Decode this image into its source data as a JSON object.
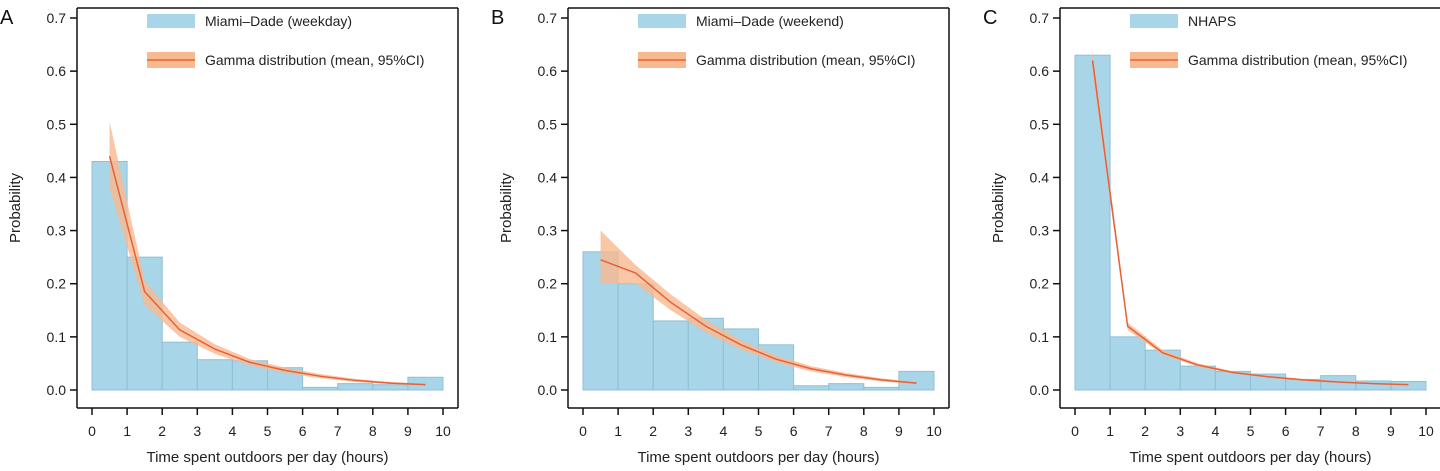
{
  "colors": {
    "bar": "#a8d5e8",
    "bar_edge": "#8fc0d6",
    "ci": "#f7b98e",
    "mean": "#e8603a",
    "axis": "#111111"
  },
  "chart_data": [
    {
      "type": "bar",
      "panel_label": "A",
      "xlabel": "Time spent outdoors per day (hours)",
      "ylabel": "Probability",
      "xlim": [
        0,
        10
      ],
      "ylim": [
        0,
        0.7
      ],
      "xticks": [
        0,
        1,
        2,
        3,
        4,
        5,
        6,
        7,
        8,
        9,
        10
      ],
      "yticks": [
        "0.0",
        "0.1",
        "0.2",
        "0.3",
        "0.4",
        "0.5",
        "0.6",
        "0.7"
      ],
      "grid": false,
      "legend_position": "top",
      "bins": [
        0,
        1,
        2,
        3,
        4,
        5,
        6,
        7,
        8,
        9,
        10
      ],
      "series": [
        {
          "name": "Miami–Dade (weekday)",
          "type": "histogram",
          "values": [
            0.43,
            0.25,
            0.09,
            0.057,
            0.055,
            0.042,
            0.005,
            0.012,
            0.01,
            0.024
          ]
        },
        {
          "name": "Gamma distribution (mean, 95%CI)",
          "type": "line",
          "x": [
            0.5,
            1.5,
            2.5,
            3.5,
            4.5,
            5.5,
            6.5,
            7.5,
            8.5,
            9.5
          ],
          "mean": [
            0.44,
            0.185,
            0.113,
            0.077,
            0.052,
            0.037,
            0.026,
            0.018,
            0.013,
            0.01
          ],
          "lower": [
            0.38,
            0.16,
            0.1,
            0.068,
            0.046,
            0.032,
            0.022,
            0.015,
            0.011,
            0.008
          ],
          "upper": [
            0.505,
            0.205,
            0.127,
            0.086,
            0.058,
            0.042,
            0.03,
            0.021,
            0.015,
            0.012
          ]
        }
      ]
    },
    {
      "type": "bar",
      "panel_label": "B",
      "xlabel": "Time spent outdoors per day (hours)",
      "ylabel": "Probability",
      "xlim": [
        0,
        10
      ],
      "ylim": [
        0,
        0.7
      ],
      "xticks": [
        0,
        1,
        2,
        3,
        4,
        5,
        6,
        7,
        8,
        9,
        10
      ],
      "yticks": [
        "0.0",
        "0.1",
        "0.2",
        "0.3",
        "0.4",
        "0.5",
        "0.6",
        "0.7"
      ],
      "grid": false,
      "legend_position": "top",
      "bins": [
        0,
        1,
        2,
        3,
        4,
        5,
        6,
        7,
        8,
        9,
        10
      ],
      "series": [
        {
          "name": "Miami–Dade (weekend)",
          "type": "histogram",
          "values": [
            0.26,
            0.2,
            0.13,
            0.135,
            0.115,
            0.085,
            0.008,
            0.012,
            0.005,
            0.035
          ]
        },
        {
          "name": "Gamma distribution (mean, 95%CI)",
          "type": "line",
          "x": [
            0.5,
            1.5,
            2.5,
            3.5,
            4.5,
            5.5,
            6.5,
            7.5,
            8.5,
            9.5
          ],
          "mean": [
            0.245,
            0.22,
            0.165,
            0.12,
            0.085,
            0.058,
            0.04,
            0.028,
            0.019,
            0.013
          ],
          "lower": [
            0.2,
            0.2,
            0.15,
            0.108,
            0.076,
            0.052,
            0.035,
            0.024,
            0.016,
            0.011
          ],
          "upper": [
            0.3,
            0.235,
            0.18,
            0.132,
            0.094,
            0.065,
            0.045,
            0.032,
            0.022,
            0.015
          ]
        }
      ]
    },
    {
      "type": "bar",
      "panel_label": "C",
      "xlabel": "Time spent outdoors per day (hours)",
      "ylabel": "Probability",
      "xlim": [
        0,
        10
      ],
      "ylim": [
        0,
        0.7
      ],
      "xticks": [
        0,
        1,
        2,
        3,
        4,
        5,
        6,
        7,
        8,
        9,
        10
      ],
      "yticks": [
        "0.0",
        "0.1",
        "0.2",
        "0.3",
        "0.4",
        "0.5",
        "0.6",
        "0.7"
      ],
      "grid": false,
      "legend_position": "top",
      "bins": [
        0,
        1,
        2,
        3,
        4,
        5,
        6,
        7,
        8,
        9,
        10
      ],
      "series": [
        {
          "name": "NHAPS",
          "type": "histogram",
          "values": [
            0.63,
            0.1,
            0.075,
            0.045,
            0.035,
            0.03,
            0.02,
            0.027,
            0.017,
            0.016
          ]
        },
        {
          "name": "Gamma distribution (mean, 95%CI)",
          "type": "line",
          "x": [
            0.5,
            1.5,
            2.5,
            3.5,
            4.5,
            5.5,
            6.5,
            7.5,
            8.5,
            9.5
          ],
          "mean": [
            0.62,
            0.12,
            0.07,
            0.047,
            0.033,
            0.025,
            0.019,
            0.015,
            0.012,
            0.01
          ],
          "lower": [
            0.6,
            0.113,
            0.066,
            0.044,
            0.031,
            0.023,
            0.017,
            0.013,
            0.011,
            0.009
          ],
          "upper": [
            0.64,
            0.127,
            0.075,
            0.05,
            0.035,
            0.027,
            0.021,
            0.017,
            0.013,
            0.011
          ]
        }
      ]
    }
  ]
}
